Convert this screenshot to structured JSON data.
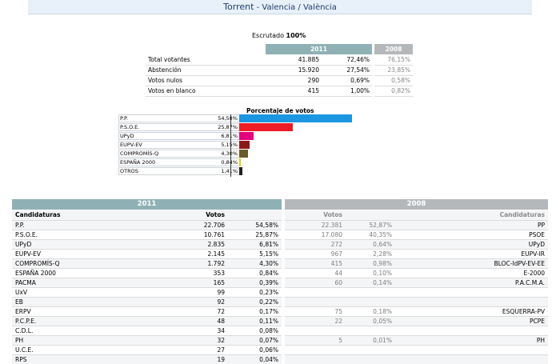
{
  "header": {
    "title_main": "Torrent",
    "separator": " - ",
    "title_sub": "Valencia / València"
  },
  "escrutado": {
    "label": "Escrutado",
    "value": "100%"
  },
  "summary": {
    "year_2011": "2011",
    "year_2008": "2008",
    "rows": [
      {
        "label": "Total votantes",
        "votes": "41.885",
        "pct": "72,46%",
        "pct2008": "76,15%"
      },
      {
        "label": "Abstención",
        "votes": "15.920",
        "pct": "27,54%",
        "pct2008": "23,85%"
      },
      {
        "label": "Votos nulos",
        "votes": "290",
        "pct": "0,69%",
        "pct2008": "0,58%"
      },
      {
        "label": "Votos en blanco",
        "votes": "415",
        "pct": "1,00%",
        "pct2008": "0,82%"
      }
    ]
  },
  "chart_data": {
    "type": "bar",
    "title": "Porcentaje de votos",
    "categories": [
      "P.P.",
      "P.S.O.E.",
      "UPyD",
      "EUPV-EV",
      "COMPROMÍS-Q",
      "ESPAÑA 2000",
      "OTROS"
    ],
    "values": [
      54.58,
      25.87,
      6.81,
      5.15,
      4.3,
      0.84,
      1.41
    ],
    "value_labels": [
      "54,58%",
      "25,87%",
      "6,81%",
      "5,15%",
      "4,30%",
      "0,84%",
      "1,41%"
    ],
    "colors": [
      "#1b96e0",
      "#ee1c25",
      "#e5007d",
      "#8b1a1a",
      "#6b5a2a",
      "#d7d20a",
      "#222222"
    ],
    "xlim": [
      0,
      100
    ],
    "orientation": "horizontal"
  },
  "results": {
    "year_2011": "2011",
    "year_2008": "2008",
    "col_candidaturas": "Candidaturas",
    "col_votos": "Votos",
    "left": [
      {
        "name": "P.P.",
        "votes": "22.706",
        "pct": "54,58%"
      },
      {
        "name": "P.S.O.E.",
        "votes": "10.761",
        "pct": "25,87%"
      },
      {
        "name": "UPyD",
        "votes": "2.835",
        "pct": "6,81%"
      },
      {
        "name": "EUPV-EV",
        "votes": "2.145",
        "pct": "5,15%"
      },
      {
        "name": "COMPROMÍS-Q",
        "votes": "1.792",
        "pct": "4,30%"
      },
      {
        "name": "ESPAÑA 2000",
        "votes": "353",
        "pct": "0,84%"
      },
      {
        "name": "PACMA",
        "votes": "165",
        "pct": "0,39%"
      },
      {
        "name": "UxV",
        "votes": "99",
        "pct": "0,23%"
      },
      {
        "name": "EB",
        "votes": "92",
        "pct": "0,22%"
      },
      {
        "name": "ERPV",
        "votes": "72",
        "pct": "0,17%"
      },
      {
        "name": "P.C.P.E.",
        "votes": "48",
        "pct": "0,11%"
      },
      {
        "name": "C.D.L.",
        "votes": "34",
        "pct": "0,08%"
      },
      {
        "name": "PH",
        "votes": "32",
        "pct": "0,07%"
      },
      {
        "name": "U.C.E.",
        "votes": "27",
        "pct": "0,06%"
      },
      {
        "name": "RPS",
        "votes": "19",
        "pct": "0,04%"
      }
    ],
    "right": [
      {
        "votes": "22.381",
        "pct": "52,87%",
        "name": "PP"
      },
      {
        "votes": "17.080",
        "pct": "40,35%",
        "name": "PSOE"
      },
      {
        "votes": "272",
        "pct": "0,64%",
        "name": "UPyD"
      },
      {
        "votes": "967",
        "pct": "2,28%",
        "name": "EUPV-IR"
      },
      {
        "votes": "415",
        "pct": "0,98%",
        "name": "BLOC-IdPV-EV-EE"
      },
      {
        "votes": "44",
        "pct": "0,10%",
        "name": "E-2000"
      },
      {
        "votes": "60",
        "pct": "0,14%",
        "name": "P.A.C.M.A."
      },
      {
        "votes": "",
        "pct": "",
        "name": ""
      },
      {
        "votes": "",
        "pct": "",
        "name": ""
      },
      {
        "votes": "75",
        "pct": "0,18%",
        "name": "ESQUERRA-PV"
      },
      {
        "votes": "22",
        "pct": "0,05%",
        "name": "PCPE"
      },
      {
        "votes": "",
        "pct": "",
        "name": ""
      },
      {
        "votes": "5",
        "pct": "0,01%",
        "name": "PH"
      },
      {
        "votes": "",
        "pct": "",
        "name": ""
      },
      {
        "votes": "",
        "pct": "",
        "name": ""
      }
    ]
  }
}
